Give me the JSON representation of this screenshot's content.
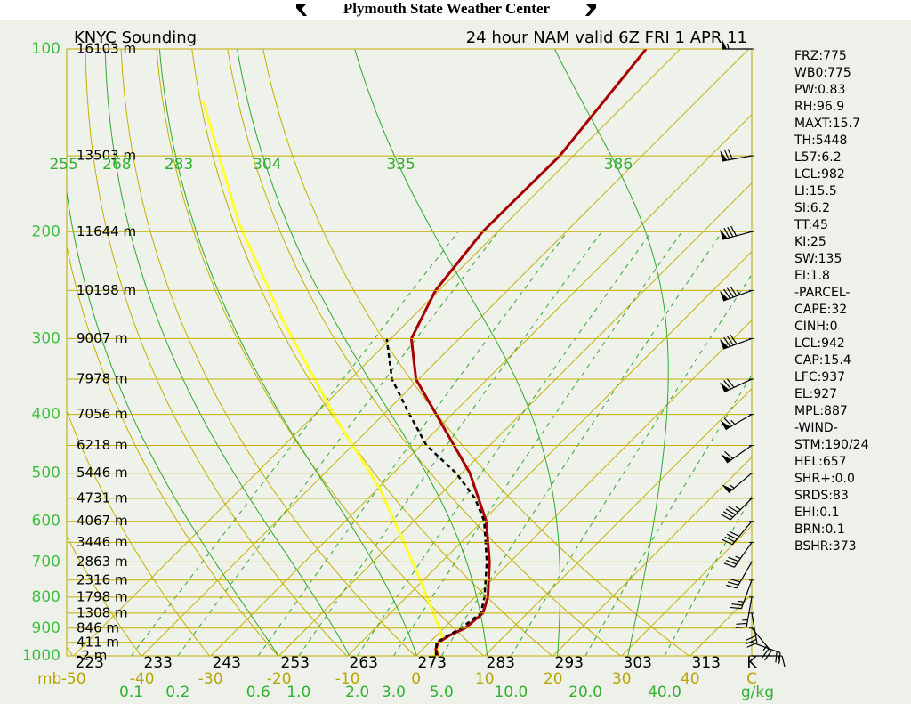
{
  "header": {
    "title": "Plymouth State Weather Center"
  },
  "chart_data": {
    "type": "skewt",
    "title": "KNYC Sounding",
    "subtitle": "24 hour NAM valid 6Z FRI 1 APR 11",
    "pressure_unit": "mb",
    "temperature_unit": "C",
    "theta_unit": "K",
    "mixing_unit": "g/kg",
    "log_y": true,
    "ylim": [
      1000,
      100
    ],
    "yticks": [
      1000,
      900,
      800,
      700,
      600,
      500,
      400,
      300,
      200,
      100
    ],
    "levels": [
      100,
      150,
      200,
      250,
      300,
      350,
      400,
      450,
      500,
      550,
      600,
      650,
      700,
      750,
      800,
      850,
      900,
      950,
      1000
    ],
    "height_labels": [
      "16103 m",
      "13503 m",
      "11644 m",
      "10198 m",
      "9007 m",
      "7978 m",
      "7056 m",
      "6218 m",
      "5446 m",
      "4731 m",
      "4067 m",
      "3446 m",
      "2863 m",
      "2316 m",
      "1798 m",
      "1308 m",
      "846 m",
      "411 m",
      "-2 m"
    ],
    "xlim": [
      -51,
      49
    ],
    "xticks": [
      -50,
      -40,
      -30,
      -20,
      -10,
      0,
      10,
      20,
      30,
      40
    ],
    "theta_ticks": [
      223,
      233,
      243,
      253,
      263,
      273,
      283,
      293,
      303,
      313
    ],
    "theta_e_ticks": [
      255,
      268,
      283,
      304,
      335,
      386
    ],
    "mixing_ticks": [
      0.1,
      0.2,
      0.6,
      {
        "value": 1,
        "label": "1.0"
      },
      {
        "value": 2,
        "label": "2.0"
      },
      {
        "value": 3,
        "label": "3.0"
      },
      {
        "value": 5,
        "label": "5.0"
      },
      {
        "value": 10,
        "label": "10.0"
      },
      {
        "value": 20,
        "label": "20.0"
      },
      {
        "value": 40,
        "label": "40.0"
      }
    ],
    "temperature": {
      "color": "#a80000",
      "pressure": [
        1000,
        975,
        950,
        925,
        900,
        850,
        800,
        700,
        600,
        500,
        400,
        350,
        300,
        250,
        200,
        150,
        100
      ],
      "values": [
        3.2,
        1.9,
        1.3,
        1.9,
        3.1,
        3.5,
        1.9,
        -3.0,
        -9.4,
        -18.8,
        -32.3,
        -40.4,
        -47,
        -50.5,
        -52.2,
        -52,
        -55
      ]
    },
    "dewpoint": {
      "color": "#000000",
      "pressure": [
        1000,
        950,
        900,
        850,
        800,
        700,
        600,
        550,
        500,
        450,
        400,
        350,
        300
      ],
      "values": [
        2.9,
        1.0,
        2.5,
        3.2,
        1.4,
        -3.4,
        -9.7,
        -14.4,
        -20.8,
        -29.2,
        -36.2,
        -43.9,
        -50.6
      ]
    },
    "parcel": {
      "color": "#ffff30",
      "pressure": [
        1000,
        928,
        721,
        532,
        406,
        280,
        193,
        122
      ],
      "values": [
        2.6,
        1.0,
        -12.6,
        -29.5,
        -46.4,
        -68.4,
        -89.2,
        -112
      ]
    },
    "wind": {
      "pressure": [
        100,
        150,
        200,
        250,
        300,
        350,
        400,
        450,
        500,
        550,
        600,
        650,
        700,
        750,
        800,
        850,
        900,
        950,
        1000
      ],
      "direction": [
        270,
        260,
        255,
        250,
        250,
        245,
        240,
        235,
        230,
        225,
        220,
        215,
        210,
        200,
        190,
        170,
        140,
        110,
        90
      ],
      "speed": [
        55,
        70,
        80,
        85,
        80,
        70,
        65,
        60,
        55,
        45,
        40,
        35,
        30,
        25,
        25,
        30,
        25,
        20,
        15
      ]
    }
  },
  "indices": [
    "FRZ:775",
    "WB0:775",
    "PW:0.83",
    "RH:96.9",
    "MAXT:15.7",
    "TH:5448",
    "L57:6.2",
    "LCL:982",
    "LI:15.5",
    "SI:6.2",
    "TT:45",
    "KI:25",
    "SW:135",
    "EI:1.8",
    "-PARCEL-",
    "CAPE:32",
    "CINH:0",
    "LCL:942",
    "CAP:15.4",
    "LFC:937",
    "EL:927",
    "MPL:887",
    "-WIND-",
    "STM:190/24",
    "HEL:657",
    "SHR+:0.0",
    "SRDS:83",
    "EHI:0.1",
    "BRN:0.1",
    "BSHR:373"
  ]
}
